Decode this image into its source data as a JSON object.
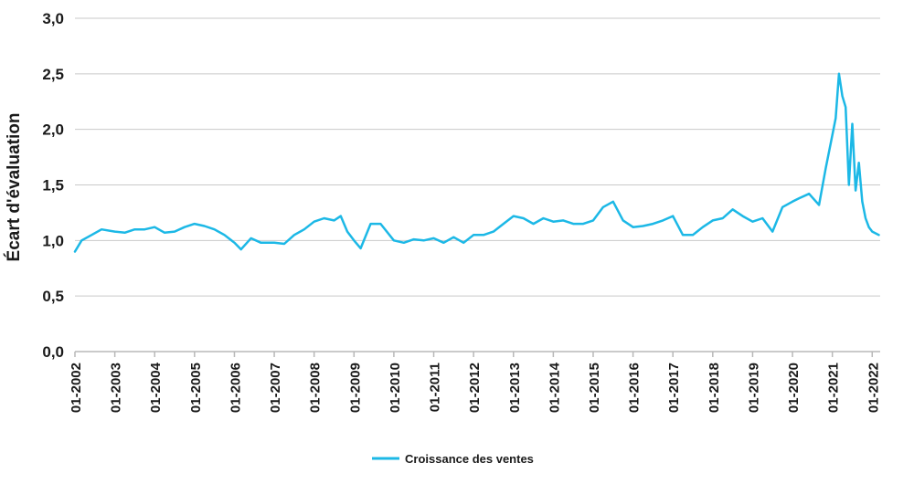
{
  "chart_data": {
    "type": "line",
    "ylabel": "Écart d'évaluation",
    "xlabel": "",
    "ylim": [
      0,
      3
    ],
    "y_ticks": [
      "0,0",
      "0,5",
      "1,0",
      "1,5",
      "2,0",
      "2,5",
      "3,0"
    ],
    "x_ticks": [
      "01-2002",
      "01-2003",
      "01-2004",
      "01-2005",
      "01-2006",
      "01-2007",
      "01-2008",
      "01-2009",
      "01-2010",
      "01-2011",
      "01-2012",
      "01-2013",
      "01-2014",
      "01-2015",
      "01-2016",
      "01-2017",
      "01-2018",
      "01-2019",
      "01-2020",
      "01-2021",
      "01-2022"
    ],
    "grid": "horizontal",
    "legend_position": "bottom-center",
    "series": [
      {
        "name": "Croissance des ventes",
        "color": "#1cb8e6",
        "x": [
          "2002-01",
          "2002-03",
          "2002-06",
          "2002-09",
          "2003-01",
          "2003-04",
          "2003-07",
          "2003-10",
          "2004-01",
          "2004-04",
          "2004-07",
          "2004-10",
          "2005-01",
          "2005-04",
          "2005-07",
          "2005-10",
          "2006-01",
          "2006-03",
          "2006-06",
          "2006-09",
          "2007-01",
          "2007-04",
          "2007-07",
          "2007-10",
          "2008-01",
          "2008-04",
          "2008-07",
          "2008-09",
          "2008-11",
          "2009-01",
          "2009-03",
          "2009-06",
          "2009-09",
          "2010-01",
          "2010-04",
          "2010-07",
          "2010-10",
          "2011-01",
          "2011-04",
          "2011-07",
          "2011-10",
          "2012-01",
          "2012-04",
          "2012-07",
          "2012-10",
          "2013-01",
          "2013-04",
          "2013-07",
          "2013-10",
          "2014-01",
          "2014-04",
          "2014-07",
          "2014-10",
          "2015-01",
          "2015-04",
          "2015-07",
          "2015-10",
          "2016-01",
          "2016-04",
          "2016-07",
          "2016-10",
          "2017-01",
          "2017-04",
          "2017-07",
          "2017-10",
          "2018-01",
          "2018-04",
          "2018-07",
          "2018-10",
          "2019-01",
          "2019-04",
          "2019-07",
          "2019-10",
          "2020-01",
          "2020-03",
          "2020-06",
          "2020-09",
          "2020-11",
          "2021-01",
          "2021-02",
          "2021-03",
          "2021-04",
          "2021-05",
          "2021-06",
          "2021-07",
          "2021-08",
          "2021-09",
          "2021-10",
          "2021-11",
          "2021-12",
          "2022-01",
          "2022-03"
        ],
        "values": [
          0.9,
          1.0,
          1.05,
          1.1,
          1.08,
          1.07,
          1.1,
          1.1,
          1.12,
          1.07,
          1.08,
          1.12,
          1.15,
          1.13,
          1.1,
          1.05,
          0.98,
          0.92,
          1.02,
          0.98,
          0.98,
          0.97,
          1.05,
          1.1,
          1.17,
          1.2,
          1.18,
          1.22,
          1.08,
          1.0,
          0.93,
          1.15,
          1.15,
          1.0,
          0.98,
          1.01,
          1.0,
          1.02,
          0.98,
          1.03,
          0.98,
          1.05,
          1.05,
          1.08,
          1.15,
          1.22,
          1.2,
          1.15,
          1.2,
          1.17,
          1.18,
          1.15,
          1.15,
          1.18,
          1.3,
          1.35,
          1.18,
          1.12,
          1.13,
          1.15,
          1.18,
          1.22,
          1.05,
          1.05,
          1.12,
          1.18,
          1.2,
          1.28,
          1.22,
          1.17,
          1.2,
          1.08,
          1.3,
          1.35,
          1.38,
          1.42,
          1.32,
          1.65,
          1.95,
          2.1,
          2.5,
          2.3,
          2.2,
          1.5,
          2.05,
          1.45,
          1.7,
          1.35,
          1.2,
          1.12,
          1.08,
          1.05
        ]
      }
    ]
  }
}
